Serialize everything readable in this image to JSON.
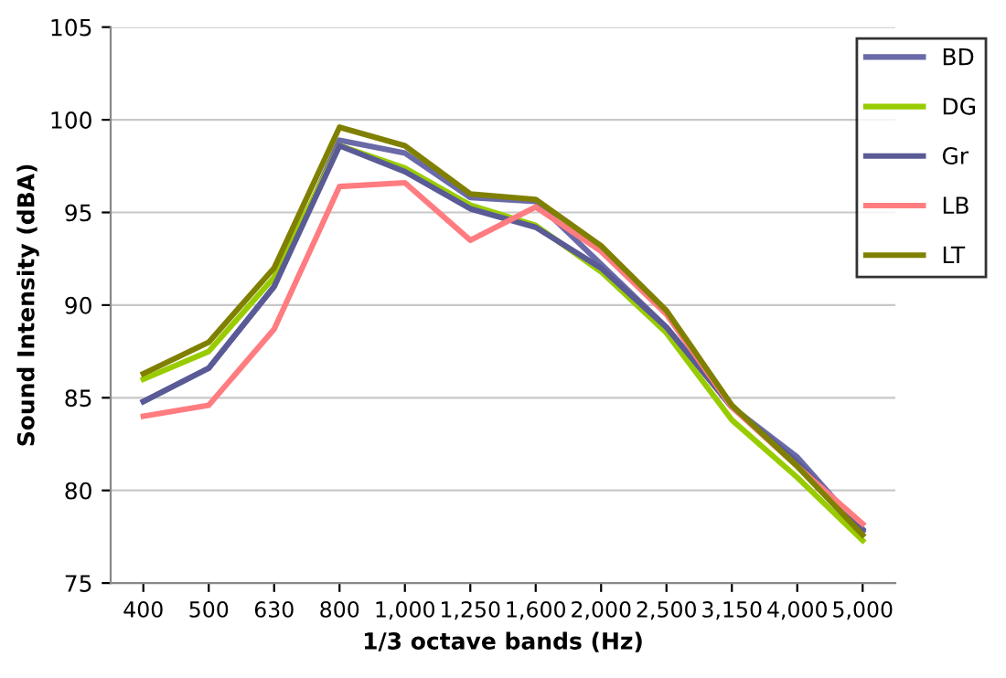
{
  "chart_data": {
    "type": "line",
    "xlabel": "1/3 octave bands (Hz)",
    "ylabel": "Sound Intensity (dBA)",
    "categories": [
      "400",
      "500",
      "630",
      "800",
      "1,000",
      "1,250",
      "1,600",
      "2,000",
      "2,500",
      "3,150",
      "4,000",
      "5,000"
    ],
    "series": [
      {
        "name": "BD",
        "color": "#6a6aa8",
        "values": [
          84.8,
          86.6,
          91.0,
          98.9,
          98.2,
          95.8,
          95.6,
          92.2,
          88.8,
          84.5,
          81.8,
          77.8
        ]
      },
      {
        "name": "DG",
        "color": "#99cc00",
        "values": [
          86.0,
          87.5,
          91.5,
          98.6,
          97.4,
          95.4,
          94.3,
          91.8,
          88.5,
          83.8,
          80.7,
          77.3
        ]
      },
      {
        "name": "Gr",
        "color": "#5a5a96",
        "values": [
          84.8,
          86.6,
          91.0,
          98.6,
          97.2,
          95.2,
          94.2,
          92.0,
          88.8,
          84.5,
          81.5,
          77.9
        ]
      },
      {
        "name": "LB",
        "color": "#ff7c80",
        "values": [
          84.0,
          84.6,
          88.7,
          96.4,
          96.6,
          93.5,
          95.3,
          92.9,
          89.5,
          84.5,
          81.3,
          78.2
        ]
      },
      {
        "name": "LT",
        "color": "#808000",
        "values": [
          86.3,
          88.0,
          92.0,
          99.6,
          98.6,
          96.0,
          95.7,
          93.2,
          89.7,
          84.6,
          81.3,
          77.6
        ]
      }
    ],
    "ylim": [
      75,
      105
    ],
    "yticks": [
      75,
      80,
      85,
      90,
      95,
      100,
      105
    ],
    "grid": "y",
    "legend": "top right",
    "marker": "none",
    "line_style": "solid"
  }
}
